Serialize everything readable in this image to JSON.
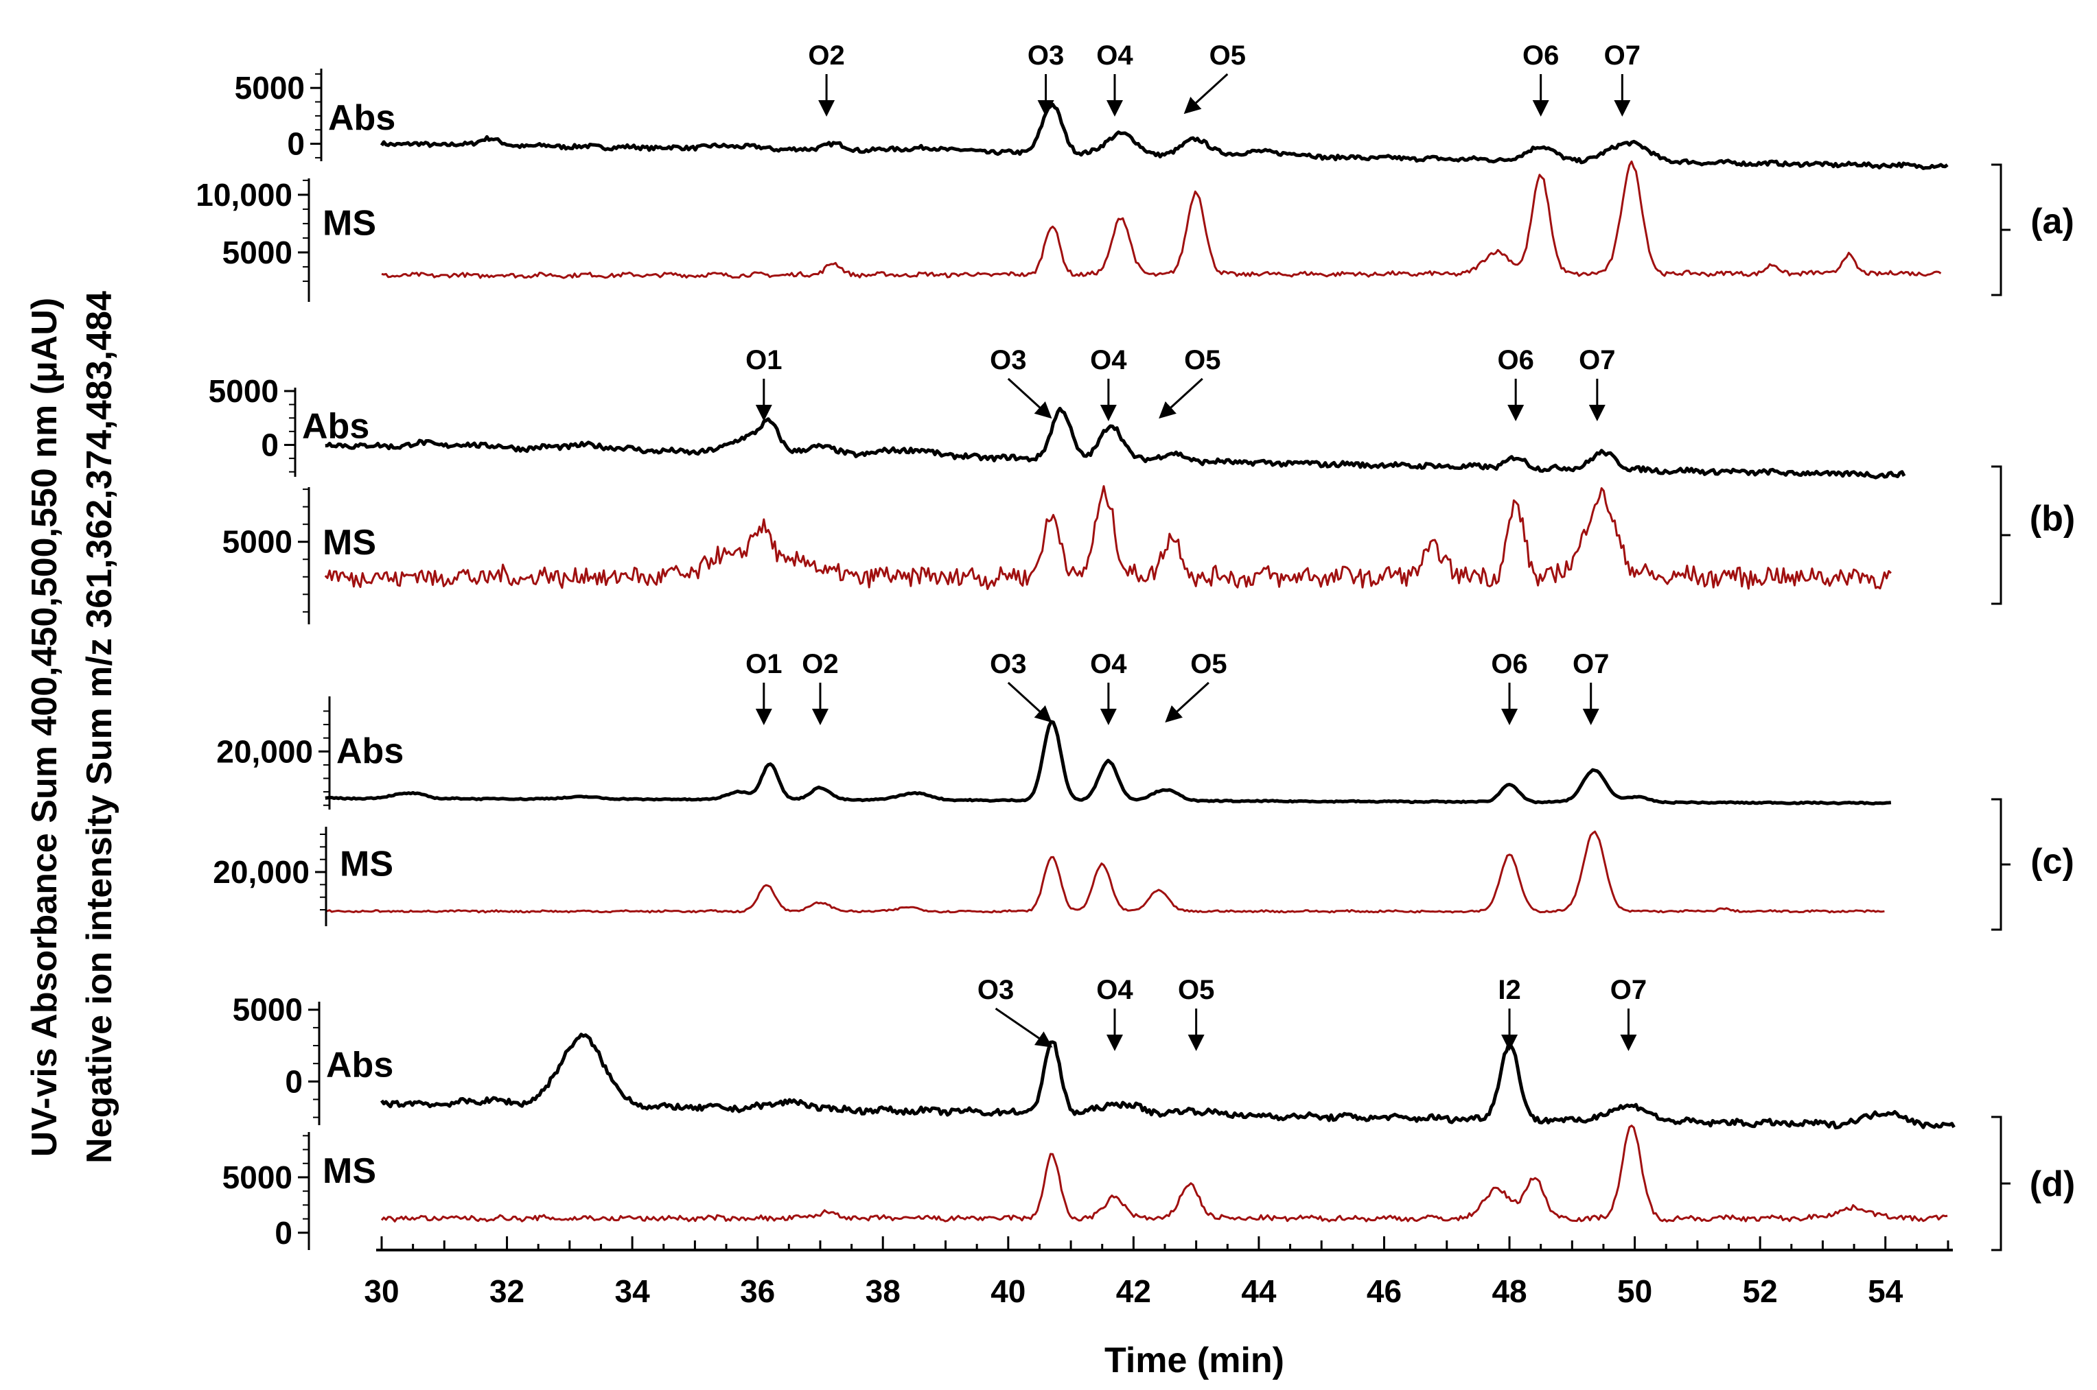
{
  "figure": {
    "ylabel_line1": "UV-vis Absorbance Sum 400,450,500,550 nm (μAU)",
    "ylabel_line2": "Negative ion intensity Sum m/z 361,362,374,483,484",
    "xlabel": "Time (min)",
    "colors": {
      "abs": "#000000",
      "ms": "#a01010",
      "axis": "#000000"
    }
  },
  "chart_data": {
    "type": "line",
    "xlabel": "Time (min)",
    "xlim": [
      30,
      55
    ],
    "x_ticks": [
      30,
      32,
      34,
      36,
      38,
      40,
      42,
      44,
      46,
      48,
      50,
      52,
      54
    ],
    "x_tick_labels": [
      "30",
      "32",
      "34",
      "36",
      "38",
      "40",
      "42",
      "44",
      "46",
      "48",
      "50",
      "52",
      "54"
    ],
    "panels": [
      {
        "id": "a",
        "label": "(a)",
        "abs": {
          "name": "Abs",
          "start": 30,
          "end": 55,
          "base": 0,
          "baseline_end": -2000,
          "noise": 180,
          "y_ticks": [
            5000,
            0
          ],
          "y_tick_labels": [
            "5000",
            "0"
          ],
          "ylim": [
            -2300,
            6300
          ],
          "peaks": [
            [
              31.7,
              650,
              0.15
            ],
            [
              35.6,
              250,
              0.4
            ],
            [
              37.2,
              550,
              0.18
            ],
            [
              38.7,
              300,
              0.5
            ],
            [
              40.7,
              4300,
              0.16
            ],
            [
              41.8,
              1900,
              0.22
            ],
            [
              43.0,
              1500,
              0.2
            ],
            [
              43.9,
              400,
              0.25
            ],
            [
              44.5,
              300,
              0.25
            ],
            [
              48.5,
              1300,
              0.2
            ],
            [
              49.9,
              1700,
              0.3
            ]
          ]
        },
        "ms": {
          "name": "MS",
          "start": 30,
          "end": 54.9,
          "base": 3000,
          "baseline_end": 3200,
          "noise": 180,
          "y_ticks": [
            10000,
            5000
          ],
          "y_tick_labels": [
            "10,000",
            "5000"
          ],
          "ylim": [
            1900,
            11600
          ],
          "peaks": [
            [
              37.2,
              1000,
              0.12
            ],
            [
              40.7,
              4200,
              0.12
            ],
            [
              41.8,
              5000,
              0.14
            ],
            [
              43.0,
              7200,
              0.14
            ],
            [
              47.8,
              2000,
              0.2
            ],
            [
              48.5,
              8600,
              0.14
            ],
            [
              49.95,
              9600,
              0.16
            ],
            [
              52.2,
              700,
              0.1
            ],
            [
              53.4,
              1600,
              0.1
            ]
          ]
        },
        "annotations": [
          {
            "text": "O2",
            "x": 37.1,
            "dx": 0
          },
          {
            "text": "O3",
            "x": 40.6,
            "dx": 0
          },
          {
            "text": "O4",
            "x": 41.7,
            "dx": 0
          },
          {
            "text": "O5",
            "x": 42.9,
            "dx": 0.6
          },
          {
            "text": "O6",
            "x": 48.5,
            "dx": 0
          },
          {
            "text": "O7",
            "x": 49.8,
            "dx": 0
          }
        ]
      },
      {
        "id": "b",
        "label": "(b)",
        "abs": {
          "name": "Abs",
          "start": 29.1,
          "end": 54.3,
          "base": 0,
          "baseline_end": -2800,
          "noise": 230,
          "y_ticks": [
            5000,
            0
          ],
          "y_tick_labels": [
            "5000",
            "0"
          ],
          "ylim": [
            -3600,
            6400
          ],
          "peaks": [
            [
              30.7,
              350,
              0.2
            ],
            [
              31.5,
              300,
              0.3
            ],
            [
              33.3,
              400,
              0.5
            ],
            [
              35.8,
              1400,
              0.25
            ],
            [
              36.2,
              2600,
              0.15
            ],
            [
              37.0,
              800,
              0.2
            ],
            [
              38.4,
              600,
              0.4
            ],
            [
              40.85,
              4600,
              0.15
            ],
            [
              41.65,
              3300,
              0.17
            ],
            [
              42.6,
              700,
              0.2
            ],
            [
              48.1,
              900,
              0.15
            ],
            [
              49.5,
              1500,
              0.2
            ]
          ]
        },
        "ms": {
          "name": "MS",
          "start": 29.1,
          "end": 54.1,
          "base": 2500,
          "baseline_end": 2500,
          "noise": 650,
          "y_ticks": [
            5000
          ],
          "y_tick_labels": [
            "5000"
          ],
          "ylim": [
            -400,
            9000
          ],
          "peaks": [
            [
              35.5,
              1500,
              0.3
            ],
            [
              36.1,
              3200,
              0.2
            ],
            [
              36.8,
              1200,
              0.2
            ],
            [
              40.7,
              4000,
              0.15
            ],
            [
              41.55,
              5900,
              0.15
            ],
            [
              42.6,
              2800,
              0.15
            ],
            [
              46.8,
              1800,
              0.2
            ],
            [
              48.1,
              5000,
              0.13
            ],
            [
              49.45,
              5600,
              0.25
            ]
          ]
        },
        "annotations": [
          {
            "text": "O1",
            "x": 36.1,
            "dx": 0
          },
          {
            "text": "O3",
            "x": 40.6,
            "dx": -0.6
          },
          {
            "text": "O4",
            "x": 41.6,
            "dx": 0
          },
          {
            "text": "O5",
            "x": 42.5,
            "dx": 0.6
          },
          {
            "text": "O6",
            "x": 48.1,
            "dx": 0
          },
          {
            "text": "O7",
            "x": 49.4,
            "dx": 0
          }
        ]
      },
      {
        "id": "c",
        "label": "(c)",
        "abs": {
          "name": "Abs",
          "start": 29.1,
          "end": 54.1,
          "base": 11300,
          "baseline_end": 10400,
          "noise": 110,
          "y_ticks": [
            20000
          ],
          "y_tick_labels": [
            "20,000"
          ],
          "ylim": [
            9200,
            29600
          ],
          "peaks": [
            [
              30.2,
              400,
              0.15
            ],
            [
              30.5,
              900,
              0.2
            ],
            [
              33.2,
              400,
              0.3
            ],
            [
              35.7,
              1500,
              0.18
            ],
            [
              36.2,
              6700,
              0.13
            ],
            [
              37.0,
              2300,
              0.15
            ],
            [
              38.5,
              1300,
              0.25
            ],
            [
              40.7,
              14600,
              0.14
            ],
            [
              41.6,
              7400,
              0.15
            ],
            [
              42.5,
              2100,
              0.2
            ],
            [
              48.0,
              3300,
              0.14
            ],
            [
              49.35,
              6000,
              0.18
            ],
            [
              50.0,
              1000,
              0.2
            ]
          ]
        },
        "ms": {
          "name": "MS",
          "start": 29.1,
          "end": 54.0,
          "base": 12200,
          "baseline_end": 12200,
          "noise": 180,
          "y_ticks": [
            20000
          ],
          "y_tick_labels": [
            "20,000"
          ],
          "ylim": [
            10600,
            29000
          ],
          "peaks": [
            [
              36.15,
              5300,
              0.13
            ],
            [
              37.0,
              1800,
              0.15
            ],
            [
              38.4,
              900,
              0.15
            ],
            [
              40.7,
              10800,
              0.13
            ],
            [
              41.5,
              9300,
              0.14
            ],
            [
              42.4,
              4200,
              0.15
            ],
            [
              48.0,
              11200,
              0.15
            ],
            [
              49.35,
              15800,
              0.17
            ],
            [
              51.4,
              500,
              0.1
            ]
          ]
        },
        "annotations": [
          {
            "text": "O1",
            "x": 36.1,
            "dx": 0
          },
          {
            "text": "O2",
            "x": 37.0,
            "dx": 0
          },
          {
            "text": "O3",
            "x": 40.6,
            "dx": -0.6
          },
          {
            "text": "O4",
            "x": 41.6,
            "dx": 0
          },
          {
            "text": "O5",
            "x": 42.6,
            "dx": 0.6
          },
          {
            "text": "O6",
            "x": 48.0,
            "dx": 0
          },
          {
            "text": "O7",
            "x": 49.3,
            "dx": 0
          }
        ]
      },
      {
        "id": "d",
        "label": "(d)",
        "abs": {
          "name": "Abs",
          "start": 30,
          "end": 55.1,
          "base": -1500,
          "baseline_end": -3100,
          "noise": 200,
          "y_ticks": [
            5000,
            0
          ],
          "y_tick_labels": [
            "5000",
            "0"
          ],
          "ylim": [
            -4000,
            5800
          ],
          "peaks": [
            [
              31.7,
              300,
              0.3
            ],
            [
              33.2,
              4800,
              0.35
            ],
            [
              36.5,
              500,
              0.3
            ],
            [
              40.7,
              4900,
              0.13
            ],
            [
              41.8,
              700,
              0.3
            ],
            [
              43.0,
              300,
              0.3
            ],
            [
              48.0,
              5200,
              0.15
            ],
            [
              49.9,
              1100,
              0.3
            ],
            [
              54.0,
              900,
              0.3
            ]
          ]
        },
        "ms": {
          "name": "MS",
          "start": 30,
          "end": 55.0,
          "base": 1300,
          "baseline_end": 1300,
          "noise": 220,
          "y_ticks": [
            5000,
            0
          ],
          "y_tick_labels": [
            "5000",
            "0"
          ],
          "ylim": [
            -200,
            9700
          ],
          "peaks": [
            [
              37.1,
              600,
              0.15
            ],
            [
              40.7,
              5700,
              0.12
            ],
            [
              41.7,
              2000,
              0.15
            ],
            [
              42.9,
              3100,
              0.15
            ],
            [
              47.8,
              2700,
              0.2
            ],
            [
              48.4,
              3700,
              0.15
            ],
            [
              49.95,
              8300,
              0.15
            ],
            [
              53.5,
              900,
              0.3
            ]
          ]
        },
        "annotations": [
          {
            "text": "O3",
            "x": 40.6,
            "dx": -0.8
          },
          {
            "text": "O4",
            "x": 41.7,
            "dx": 0
          },
          {
            "text": "O5",
            "x": 43.0,
            "dx": 0
          },
          {
            "text": "I2",
            "x": 48.0,
            "dx": 0
          },
          {
            "text": "O7",
            "x": 49.9,
            "dx": 0
          }
        ]
      }
    ]
  }
}
